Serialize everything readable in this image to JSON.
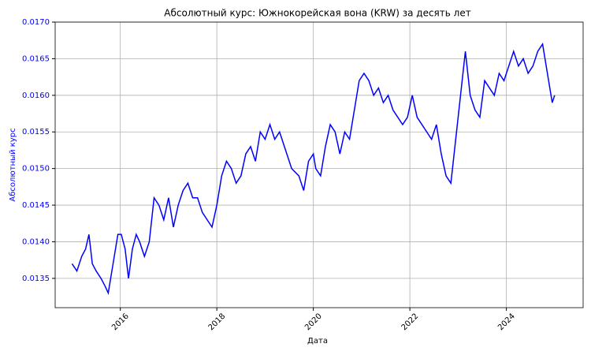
{
  "chart_data": {
    "type": "line",
    "title": "Абсолютный курс: Южнокорейская вона (KRW) за десять лет",
    "x_label": "Дата",
    "y_label": "Абсолютный курс",
    "x": [
      2015.0,
      2015.1,
      2015.2,
      2015.28,
      2015.35,
      2015.42,
      2015.5,
      2015.6,
      2015.68,
      2015.75,
      2015.85,
      2015.95,
      2016.02,
      2016.1,
      2016.17,
      2016.25,
      2016.33,
      2016.4,
      2016.5,
      2016.6,
      2016.7,
      2016.8,
      2016.9,
      2017.0,
      2017.1,
      2017.2,
      2017.3,
      2017.4,
      2017.5,
      2017.6,
      2017.7,
      2017.8,
      2017.9,
      2018.0,
      2018.1,
      2018.2,
      2018.3,
      2018.4,
      2018.5,
      2018.6,
      2018.7,
      2018.8,
      2018.9,
      2019.0,
      2019.1,
      2019.2,
      2019.3,
      2019.45,
      2019.55,
      2019.7,
      2019.8,
      2019.9,
      2020.0,
      2020.05,
      2020.15,
      2020.25,
      2020.35,
      2020.45,
      2020.55,
      2020.65,
      2020.75,
      2020.85,
      2020.95,
      2021.05,
      2021.15,
      2021.25,
      2021.35,
      2021.45,
      2021.55,
      2021.65,
      2021.75,
      2021.85,
      2021.95,
      2022.05,
      2022.15,
      2022.25,
      2022.35,
      2022.45,
      2022.55,
      2022.65,
      2022.75,
      2022.85,
      2022.95,
      2023.05,
      2023.15,
      2023.25,
      2023.35,
      2023.45,
      2023.55,
      2023.65,
      2023.75,
      2023.85,
      2023.95,
      2024.05,
      2024.15,
      2024.25,
      2024.35,
      2024.45,
      2024.55,
      2024.65,
      2024.75,
      2024.85,
      2024.95,
      2025.0
    ],
    "series": [
      {
        "name": "KRW",
        "color": "#0000ff",
        "values": [
          0.0137,
          0.0136,
          0.0138,
          0.0139,
          0.0141,
          0.0137,
          0.0136,
          0.0135,
          0.0134,
          0.0133,
          0.0137,
          0.0141,
          0.0141,
          0.0139,
          0.0135,
          0.0139,
          0.0141,
          0.014,
          0.0138,
          0.014,
          0.0146,
          0.0145,
          0.0143,
          0.0146,
          0.0142,
          0.0145,
          0.0147,
          0.0148,
          0.0146,
          0.0146,
          0.0144,
          0.0143,
          0.0142,
          0.0145,
          0.0149,
          0.0151,
          0.015,
          0.0148,
          0.0149,
          0.0152,
          0.0153,
          0.0151,
          0.0155,
          0.0154,
          0.0156,
          0.0154,
          0.0155,
          0.0152,
          0.015,
          0.0149,
          0.0147,
          0.0151,
          0.0152,
          0.015,
          0.0149,
          0.0153,
          0.0156,
          0.0155,
          0.0152,
          0.0155,
          0.0154,
          0.0158,
          0.0162,
          0.0163,
          0.0162,
          0.016,
          0.0161,
          0.0159,
          0.016,
          0.0158,
          0.0157,
          0.0156,
          0.0157,
          0.016,
          0.0157,
          0.0156,
          0.0155,
          0.0154,
          0.0156,
          0.0152,
          0.0149,
          0.0148,
          0.0154,
          0.016,
          0.0166,
          0.016,
          0.0158,
          0.0157,
          0.0162,
          0.0161,
          0.016,
          0.0163,
          0.0162,
          0.0164,
          0.0166,
          0.0164,
          0.0165,
          0.0163,
          0.0164,
          0.0166,
          0.0167,
          0.0163,
          0.0159,
          0.016
        ]
      }
    ],
    "xlim": [
      2014.65,
      2025.59
    ],
    "xticks": [
      2016,
      2018,
      2020,
      2022,
      2024
    ],
    "ylim": [
      0.0131,
      0.017
    ],
    "yticks": [
      0.0135,
      {
        "value": 0.014,
        "label": "0.0140"
      },
      0.0145,
      {
        "value": 0.015,
        "label": "0.0150"
      },
      0.0155,
      {
        "value": 0.016,
        "label": "0.0160"
      },
      0.0165,
      {
        "value": 0.017,
        "label": "0.0170"
      }
    ],
    "y_label_color": "#0000ff",
    "grid": true
  }
}
